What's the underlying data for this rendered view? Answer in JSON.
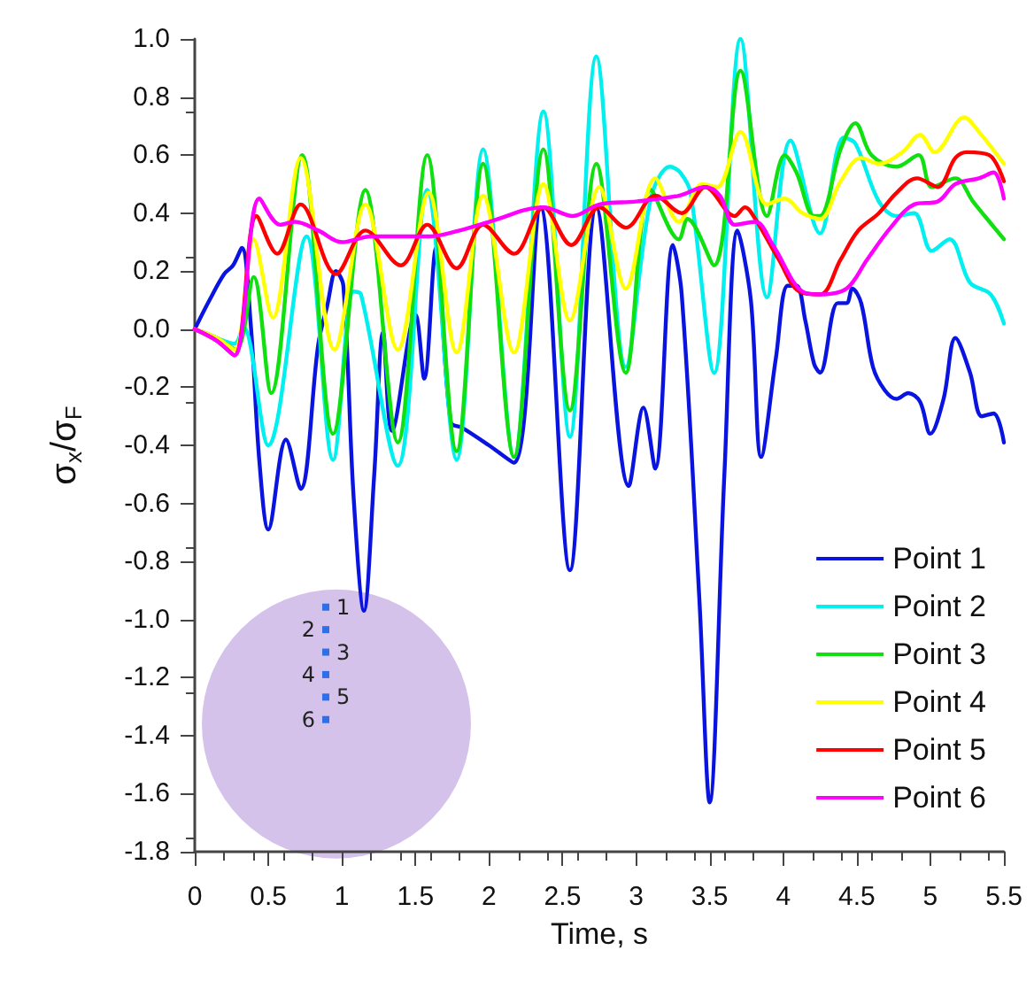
{
  "chart_data": {
    "type": "line",
    "xlabel": "Time, s",
    "ylabel": "σ$_{x}$/σ$_{F}$",
    "xlim": [
      0,
      5.5
    ],
    "xticks": [
      0,
      0.5,
      1,
      1.5,
      2,
      2.5,
      3,
      3.5,
      4,
      4.5,
      5,
      5.5
    ],
    "ylim": [
      -1.8,
      1.0
    ],
    "yticks": [
      {
        "value": -1.8,
        "label": "-1.8"
      },
      {
        "value": -1.6,
        "label": "-1.6"
      },
      {
        "value": -1.4,
        "label": "-1.4"
      },
      {
        "value": -1.2,
        "label": "-1.2"
      },
      {
        "value": -1.0,
        "label": "-1.0"
      },
      {
        "value": -0.8,
        "label": "-0.8"
      },
      {
        "value": -0.6,
        "label": "-0.6"
      },
      {
        "value": -0.4,
        "label": "-0.4"
      },
      {
        "value": -0.2,
        "label": "-0.2"
      },
      {
        "value": 0,
        "label": "0.0"
      },
      {
        "value": 0.2,
        "label": "0.2"
      },
      {
        "value": 0.4,
        "label": "0.4"
      },
      {
        "value": 0.6,
        "label": "0.6"
      },
      {
        "value": 0.8,
        "label": "0.8"
      },
      {
        "value": 1.0,
        "label": "1.0"
      }
    ],
    "grid": false,
    "legend": "bottom right",
    "marker": "none",
    "line_style": "solid",
    "annotations": [
      "1",
      "2",
      "3",
      "4",
      "5",
      "6"
    ],
    "series": [
      {
        "name": "Point 1",
        "color": "#0a14e0",
        "x": [
          0,
          0.1,
          0.2,
          0.26,
          0.32,
          0.38,
          0.44,
          0.5,
          0.62,
          0.72,
          0.84,
          0.9,
          0.96,
          1.01,
          1.08,
          1.15,
          1.22,
          1.28,
          1.34,
          1.5,
          1.56,
          1.64,
          1.74,
          1.82,
          2.0,
          2.17,
          2.35,
          2.55,
          2.73,
          2.95,
          3.05,
          3.13,
          3.25,
          3.31,
          3.43,
          3.5,
          3.6,
          3.69,
          3.78,
          3.85,
          3.95,
          4.03,
          4.09,
          4.15,
          4.21,
          4.25,
          4.37,
          4.43,
          4.47,
          4.53,
          4.61,
          4.69,
          4.77,
          4.85,
          4.93,
          5.0,
          5.09,
          5.17,
          5.27,
          5.35,
          5.43,
          5.5
        ],
        "values": [
          0,
          0.1,
          0.19,
          0.22,
          0.28,
          0.02,
          -0.46,
          -0.69,
          -0.38,
          -0.55,
          -0.05,
          0.08,
          0.2,
          0.15,
          -0.58,
          -0.97,
          -0.5,
          -0.01,
          -0.35,
          0.05,
          -0.17,
          0.28,
          -0.32,
          -0.34,
          -0.4,
          -0.46,
          0.42,
          -0.83,
          0.42,
          -0.54,
          -0.27,
          -0.48,
          0.29,
          0.12,
          -0.93,
          -1.63,
          -0.5,
          0.34,
          0.1,
          -0.44,
          -0.1,
          0.15,
          0.15,
          0.03,
          -0.12,
          -0.15,
          0.09,
          0.09,
          0.14,
          0.09,
          -0.13,
          -0.21,
          -0.24,
          -0.22,
          -0.25,
          -0.36,
          -0.24,
          -0.03,
          -0.15,
          -0.3,
          -0.29,
          -0.39
        ]
      },
      {
        "name": "Point 2",
        "color": "#00f0f0",
        "x": [
          0,
          0.15,
          0.27,
          0.33,
          0.5,
          0.76,
          0.94,
          1.08,
          1.13,
          1.38,
          1.58,
          1.78,
          1.96,
          2.17,
          2.37,
          2.55,
          2.73,
          2.93,
          3.1,
          3.23,
          3.3,
          3.37,
          3.53,
          3.71,
          3.89,
          4.05,
          4.25,
          4.41,
          4.49,
          4.65,
          4.77,
          4.89,
          5.01,
          5.13,
          5.27,
          5.41,
          5.5
        ],
        "values": [
          0,
          -0.03,
          -0.05,
          0.01,
          -0.4,
          0.32,
          -0.45,
          0.13,
          0.12,
          -0.47,
          0.48,
          -0.45,
          0.62,
          -0.44,
          0.75,
          -0.37,
          0.94,
          -0.13,
          0.45,
          0.56,
          0.54,
          0.47,
          -0.15,
          1.0,
          0.11,
          0.65,
          0.33,
          0.66,
          0.64,
          0.44,
          0.39,
          0.4,
          0.27,
          0.31,
          0.16,
          0.12,
          0.02
        ]
      },
      {
        "name": "Point 3",
        "color": "#10e010",
        "x": [
          0,
          0.15,
          0.28,
          0.4,
          0.52,
          0.73,
          0.94,
          1.16,
          1.38,
          1.58,
          1.78,
          1.96,
          2.17,
          2.37,
          2.55,
          2.73,
          2.93,
          3.1,
          3.29,
          3.35,
          3.53,
          3.71,
          3.89,
          4.01,
          4.09,
          4.21,
          4.25,
          4.39,
          4.49,
          4.6,
          4.77,
          4.92,
          5.01,
          5.17,
          5.29,
          5.37,
          5.5
        ],
        "values": [
          0,
          -0.03,
          -0.07,
          0.18,
          -0.22,
          0.6,
          -0.36,
          0.48,
          -0.39,
          0.6,
          -0.42,
          0.57,
          -0.44,
          0.62,
          -0.28,
          0.57,
          -0.15,
          0.48,
          0.31,
          0.38,
          0.22,
          0.89,
          0.39,
          0.6,
          0.54,
          0.39,
          0.39,
          0.62,
          0.71,
          0.6,
          0.56,
          0.6,
          0.49,
          0.52,
          0.44,
          0.39,
          0.31
        ]
      },
      {
        "name": "Point 4",
        "color": "#ffff00",
        "x": [
          0,
          0.15,
          0.27,
          0.4,
          0.53,
          0.72,
          0.95,
          1.16,
          1.38,
          1.59,
          1.78,
          1.96,
          2.17,
          2.37,
          2.55,
          2.75,
          2.93,
          3.13,
          3.29,
          3.45,
          3.55,
          3.71,
          3.89,
          4.01,
          4.13,
          4.25,
          4.39,
          4.53,
          4.65,
          4.81,
          4.93,
          5.03,
          5.23,
          5.33,
          5.5
        ],
        "values": [
          0,
          -0.03,
          -0.07,
          0.31,
          0.04,
          0.59,
          -0.07,
          0.43,
          -0.07,
          0.47,
          -0.08,
          0.46,
          -0.08,
          0.5,
          0.03,
          0.49,
          0.14,
          0.52,
          0.37,
          0.5,
          0.49,
          0.68,
          0.43,
          0.45,
          0.4,
          0.38,
          0.51,
          0.59,
          0.57,
          0.61,
          0.67,
          0.61,
          0.73,
          0.68,
          0.57
        ]
      },
      {
        "name": "Point 5",
        "color": "#ff0000",
        "x": [
          0,
          0.15,
          0.27,
          0.42,
          0.56,
          0.72,
          0.96,
          1.16,
          1.4,
          1.58,
          1.78,
          1.96,
          2.17,
          2.37,
          2.56,
          2.75,
          2.93,
          3.13,
          3.31,
          3.47,
          3.67,
          3.74,
          3.81,
          3.97,
          4.11,
          4.25,
          4.39,
          4.51,
          4.65,
          4.77,
          4.91,
          5.05,
          5.17,
          5.25,
          5.4,
          5.5
        ],
        "values": [
          0,
          -0.04,
          -0.09,
          0.39,
          0.26,
          0.43,
          0.19,
          0.34,
          0.22,
          0.36,
          0.21,
          0.36,
          0.26,
          0.42,
          0.29,
          0.42,
          0.35,
          0.46,
          0.4,
          0.49,
          0.39,
          0.42,
          0.38,
          0.24,
          0.13,
          0.12,
          0.24,
          0.34,
          0.4,
          0.47,
          0.52,
          0.49,
          0.59,
          0.61,
          0.6,
          0.51
        ]
      },
      {
        "name": "Point 6",
        "color": "#ff00ff",
        "x": [
          0,
          0.15,
          0.27,
          0.44,
          0.58,
          0.68,
          0.84,
          1.0,
          1.2,
          1.4,
          1.6,
          1.8,
          2.0,
          2.37,
          2.57,
          2.75,
          3.0,
          3.29,
          3.47,
          3.57,
          3.67,
          3.81,
          3.93,
          4.13,
          4.25,
          4.43,
          4.57,
          4.73,
          4.89,
          5.05,
          5.17,
          5.33,
          5.43,
          5.5
        ],
        "values": [
          0,
          -0.04,
          -0.09,
          0.45,
          0.36,
          0.37,
          0.34,
          0.3,
          0.32,
          0.32,
          0.32,
          0.34,
          0.37,
          0.42,
          0.39,
          0.43,
          0.44,
          0.46,
          0.49,
          0.46,
          0.36,
          0.37,
          0.29,
          0.13,
          0.12,
          0.14,
          0.24,
          0.35,
          0.43,
          0.44,
          0.5,
          0.52,
          0.54,
          0.45
        ]
      }
    ]
  }
}
